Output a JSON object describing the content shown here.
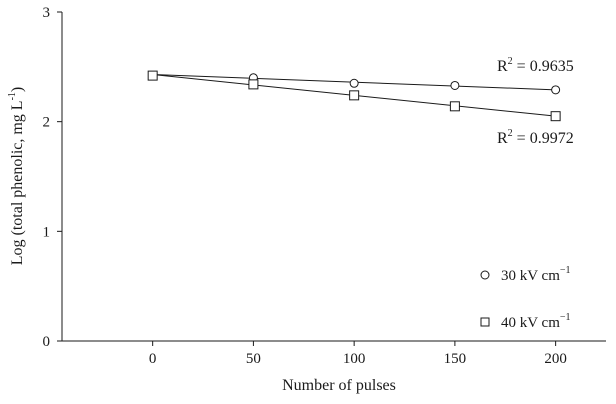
{
  "chart_data": {
    "type": "scatter",
    "xlabel": "Number of pulses",
    "ylabel": "Log (total phenolic, mg L",
    "ylabel_sup": "-1",
    "ylabel_close": ")",
    "x_ticks": [
      0,
      50,
      100,
      150,
      200
    ],
    "y_ticks": [
      0,
      1,
      2,
      3
    ],
    "xlim": [
      -45,
      225
    ],
    "ylim": [
      0,
      3
    ],
    "grid": false,
    "legend_position": "right-center",
    "series": [
      {
        "name": "30 kV cm",
        "name_sup": "−1",
        "marker": "circle",
        "x": [
          0,
          50,
          100,
          150,
          200
        ],
        "y": [
          2.42,
          2.4,
          2.35,
          2.33,
          2.29
        ],
        "trend": [
          2.43,
          2.29
        ],
        "r2_prefix": "R",
        "r2_sup": "2",
        "r2_value": " = 0.9635"
      },
      {
        "name": "40 kV cm",
        "name_sup": "−1",
        "marker": "square",
        "x": [
          0,
          50,
          100,
          150,
          200
        ],
        "y": [
          2.42,
          2.34,
          2.24,
          2.14,
          2.05
        ],
        "trend": [
          2.43,
          2.05
        ],
        "r2_prefix": "R",
        "r2_sup": "2",
        "r2_value": " = 0.9972"
      }
    ]
  }
}
